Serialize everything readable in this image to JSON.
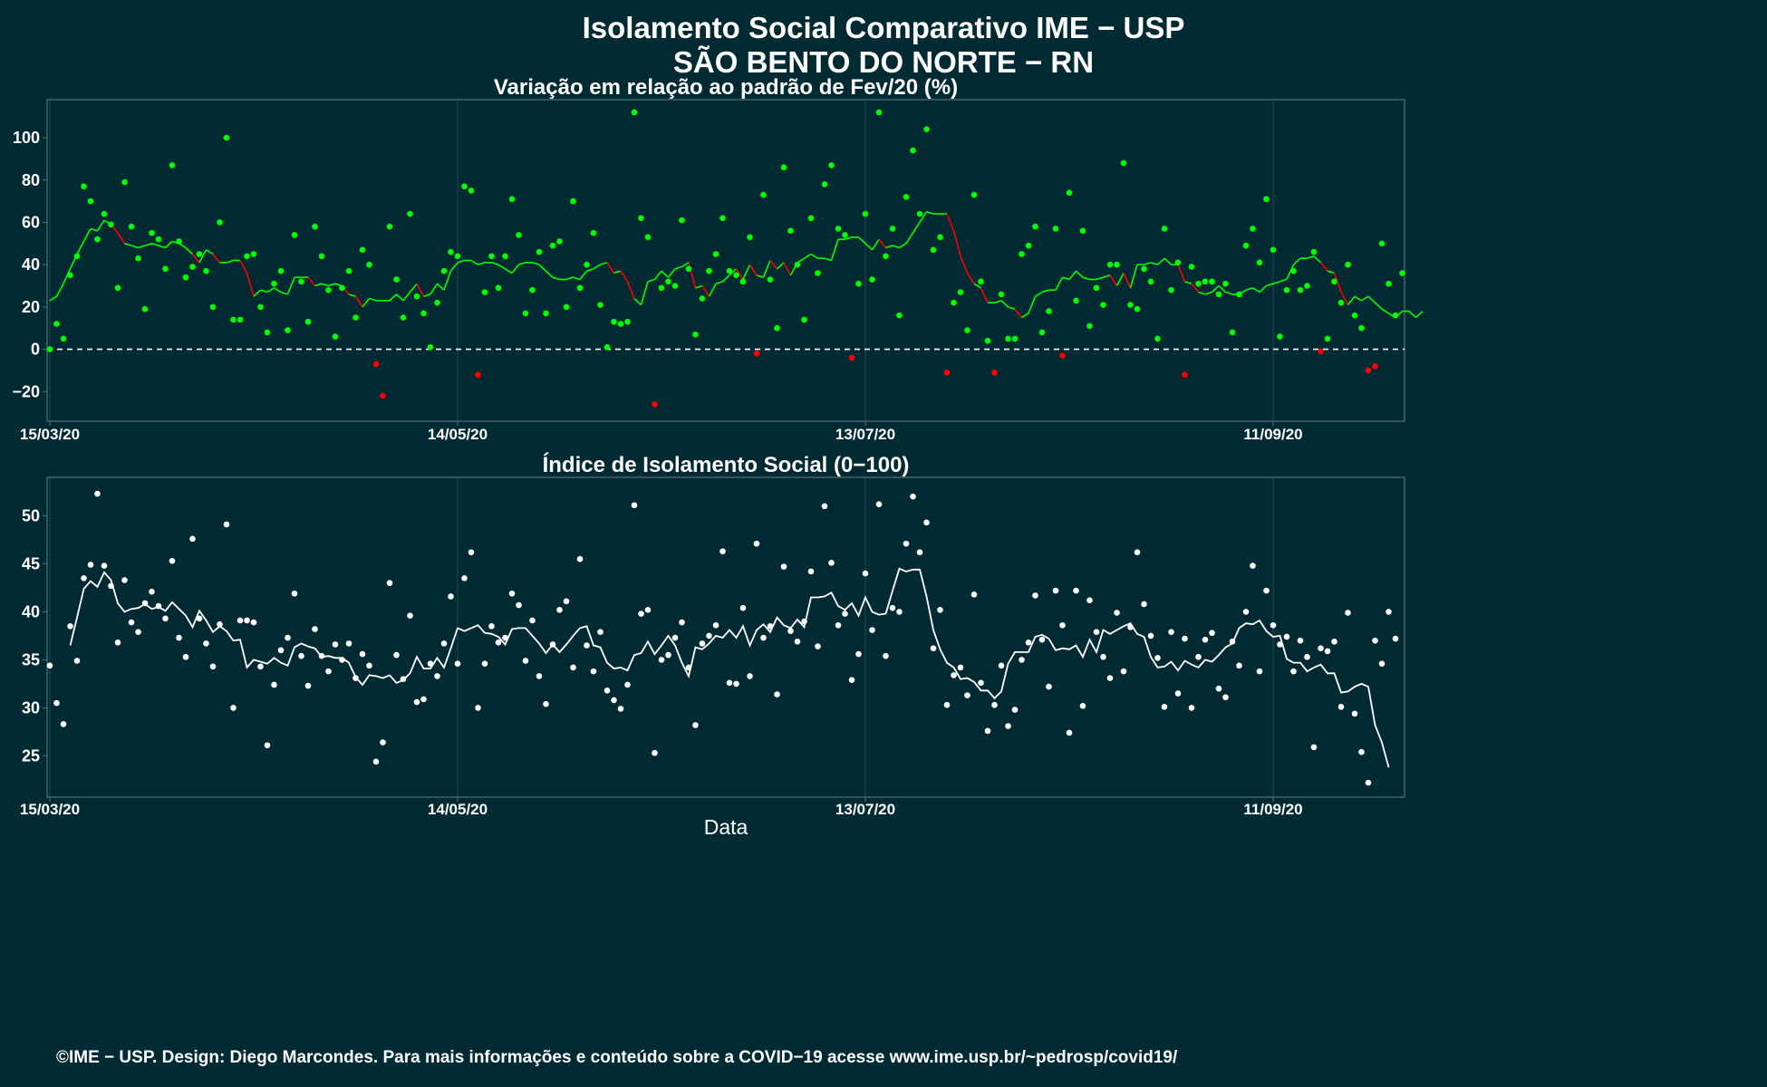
{
  "title_lines": [
    "Isolamento Social Comparativo IME − USP",
    "SÃO BENTO DO NORTE − RN"
  ],
  "credits": "©IME − USP. Design: Diego Marcondes. Para mais informações e conteúdo sobre a COVID−19 acesse www.ime.usp.br/~pedrosp/covid19/",
  "colors": {
    "background": "#022a33",
    "positive": "#00ff00",
    "negative": "#ff0000",
    "index": "#ffffff",
    "panel_border": "#5a7177",
    "grid": "#1c4a52"
  },
  "chart_data": [
    {
      "type": "scatter",
      "title": "Variação em relação ao padrão de Fev/20 (%)",
      "xlabel": "",
      "ylabel": "",
      "x_start": "15/03/20",
      "x_ticks": [
        "15/03/20",
        "14/05/20",
        "13/07/20",
        "11/09/20"
      ],
      "y_ticks": [
        -20,
        0,
        20,
        40,
        60,
        80,
        100
      ],
      "ylim": [
        -34,
        118
      ],
      "reference_line": 0,
      "moving_average": "7-day",
      "color_rule": "green when value >= 0, red when value < 0",
      "values": [
        0,
        12,
        5,
        35,
        44,
        77,
        70,
        52,
        64,
        59,
        29,
        79,
        58,
        43,
        19,
        55,
        52,
        38,
        87,
        51,
        34,
        39,
        45,
        37,
        20,
        60,
        100,
        14,
        14,
        44,
        45,
        20,
        8,
        31,
        37,
        9,
        54,
        32,
        13,
        58,
        44,
        28,
        6,
        29,
        37,
        15,
        47,
        40,
        -7,
        -22,
        58,
        33,
        15,
        64,
        25,
        17,
        1,
        22,
        37,
        46,
        44,
        77,
        75,
        -12,
        27,
        44,
        29,
        44,
        71,
        54,
        17,
        28,
        46,
        17,
        49,
        51,
        20,
        70,
        29,
        40,
        55,
        21,
        1,
        13,
        12,
        13,
        112,
        62,
        53,
        -26,
        29,
        32,
        30,
        61,
        38,
        7,
        24,
        37,
        45,
        62,
        37,
        35,
        32,
        53,
        -2,
        73,
        33,
        10,
        86,
        56,
        40,
        14,
        62,
        36,
        78,
        87,
        57,
        54,
        -4,
        31,
        64,
        33,
        112,
        44,
        57,
        16,
        72,
        94,
        64,
        104,
        47,
        53,
        -11,
        22,
        27,
        9,
        73,
        32,
        4,
        -11,
        26,
        5,
        5,
        45,
        49,
        58,
        8,
        18,
        57,
        -3,
        74,
        23,
        56,
        11,
        29,
        21,
        40,
        40,
        88,
        21,
        19,
        38,
        32,
        5,
        57,
        28,
        41,
        -12,
        39,
        31,
        32,
        32,
        26,
        31,
        8,
        26,
        49,
        57,
        41,
        71,
        47,
        6,
        28,
        37,
        28,
        30,
        46,
        -1,
        5,
        32,
        22,
        40,
        16,
        10,
        -10,
        -8,
        50,
        31,
        16,
        36
      ],
      "moving_average_values": [
        23,
        25,
        31,
        38,
        45,
        51,
        57,
        56,
        61,
        59,
        55,
        50,
        49,
        48,
        49,
        50,
        49,
        48,
        51,
        50,
        48,
        45,
        41,
        47,
        45,
        41,
        41,
        42,
        42,
        36,
        25,
        28,
        27,
        29,
        27,
        26,
        34,
        34,
        34,
        30,
        31,
        30,
        31,
        30,
        26,
        25,
        20,
        24,
        23,
        23,
        23,
        26,
        23,
        27,
        31,
        25,
        26,
        31,
        28,
        37,
        41,
        42,
        42,
        40,
        41,
        41,
        40,
        38,
        36,
        40,
        41,
        41,
        40,
        37,
        34,
        33,
        33,
        34,
        33,
        37,
        38,
        40,
        41,
        36,
        37,
        32,
        24,
        21,
        32,
        33,
        37,
        34,
        38,
        39,
        41,
        29,
        30,
        25,
        31,
        32,
        35,
        38,
        33,
        40,
        35,
        34,
        42,
        38,
        41,
        35,
        41,
        43,
        45,
        43,
        43,
        42,
        52,
        52,
        53,
        53,
        50,
        47,
        52,
        48,
        49,
        48,
        50,
        55,
        60,
        65,
        64,
        64,
        64,
        56,
        44,
        36,
        31,
        29,
        22,
        22,
        23,
        20,
        19,
        15,
        17,
        25,
        27,
        28,
        28,
        34,
        33,
        37,
        34,
        33,
        33,
        34,
        35,
        30,
        36,
        29,
        40,
        40,
        41,
        40,
        43,
        40,
        40,
        32,
        31,
        27,
        26,
        27,
        30,
        27,
        26,
        26,
        28,
        29,
        27,
        30,
        31,
        32,
        33,
        40,
        43,
        43,
        44,
        41,
        37,
        36,
        27,
        21,
        25,
        23,
        25,
        22,
        19,
        17,
        15,
        18,
        18,
        15,
        18
      ]
    },
    {
      "type": "scatter",
      "title": "Índice de Isolamento Social (0−100)",
      "xlabel": "Data",
      "ylabel": "",
      "x_start": "15/03/20",
      "x_ticks": [
        "15/03/20",
        "14/05/20",
        "13/07/20",
        "11/09/20"
      ],
      "y_ticks": [
        25,
        30,
        35,
        40,
        45,
        50
      ],
      "ylim": [
        20.7,
        54.0
      ],
      "moving_average": "7-day",
      "values": [
        34.4,
        30.5,
        28.3,
        38.5,
        34.9,
        43.5,
        44.9,
        52.3,
        44.8,
        42.7,
        36.8,
        43.3,
        38.9,
        37.9,
        40.9,
        42.1,
        40.6,
        39.3,
        45.3,
        37.3,
        35.3,
        47.6,
        39.3,
        36.7,
        34.3,
        38.7,
        49.1,
        30.0,
        39.1,
        39.1,
        38.9,
        34.3,
        26.1,
        32.4,
        36.0,
        37.3,
        41.9,
        35.4,
        32.3,
        38.2,
        35.4,
        33.8,
        36.6,
        35.0,
        36.7,
        33.1,
        35.6,
        34.4,
        24.4,
        26.4,
        43.0,
        35.5,
        33.0,
        39.6,
        30.6,
        30.9,
        34.6,
        33.3,
        36.7,
        41.6,
        34.6,
        43.5,
        46.2,
        30.0,
        34.6,
        38.5,
        36.8,
        37.3,
        41.9,
        40.7,
        34.9,
        39.1,
        33.3,
        30.4,
        36.6,
        40.2,
        41.1,
        34.2,
        45.5,
        36.5,
        33.8,
        37.9,
        31.8,
        30.8,
        29.9,
        32.4,
        51.1,
        39.8,
        40.2,
        25.3,
        35.0,
        35.5,
        37.3,
        38.9,
        34.2,
        28.2,
        36.7,
        37.5,
        38.6,
        46.3,
        32.6,
        32.5,
        40.4,
        33.3,
        47.1,
        37.3,
        38.5,
        31.4,
        44.7,
        38.0,
        36.9,
        39.0,
        44.2,
        36.4,
        51.0,
        45.1,
        38.6,
        39.8,
        32.9,
        35.6,
        44.0,
        38.1,
        51.2,
        35.4,
        40.4,
        40.0,
        47.1,
        52.0,
        46.2,
        49.3,
        36.2,
        40.2,
        30.3,
        33.4,
        34.2,
        31.3,
        41.8,
        32.6,
        27.6,
        30.3,
        34.4,
        28.1,
        29.8,
        35.0,
        36.8,
        41.7,
        37.1,
        32.2,
        42.2,
        38.6,
        27.4,
        42.2,
        30.2,
        41.2,
        37.9,
        35.3,
        33.1,
        39.9,
        33.8,
        38.4,
        46.2,
        40.8,
        37.5,
        35.2,
        30.1,
        37.9,
        31.5,
        37.2,
        30.0,
        35.3,
        37.1,
        37.8,
        32.0,
        31.1,
        36.9,
        34.4,
        40.0,
        44.8,
        33.8,
        42.2,
        38.6,
        36.6,
        37.4,
        33.8,
        37.0,
        35.3,
        25.9,
        36.2,
        35.9,
        36.9,
        30.1,
        39.9,
        29.4,
        25.4,
        22.2,
        37.0,
        34.6,
        40.0,
        37.2
      ],
      "moving_average_values": [
        null,
        null,
        null,
        36.5,
        39.4,
        42.4,
        43.2,
        42.6,
        44.1,
        43.3,
        40.9,
        40.0,
        40.3,
        40.4,
        40.8,
        40.3,
        40.5,
        40.1,
        41.0,
        40.3,
        39.6,
        38.4,
        40.1,
        39.1,
        37.9,
        38.5,
        38.0,
        37.0,
        37.1,
        34.2,
        35.0,
        34.8,
        34.6,
        35.2,
        34.7,
        34.4,
        36.3,
        36.7,
        36.4,
        36.2,
        35.3,
        35.4,
        35.2,
        35.2,
        34.7,
        33.2,
        32.4,
        33.4,
        33.3,
        33.1,
        33.4,
        32.6,
        32.9,
        33.6,
        35.3,
        34.1,
        34.1,
        35.2,
        34.2,
        36.2,
        38.3,
        38.0,
        38.3,
        38.6,
        37.8,
        37.7,
        37.4,
        36.6,
        38.2,
        38.3,
        38.3,
        37.5,
        36.7,
        35.7,
        36.6,
        35.8,
        36.6,
        37.5,
        38.3,
        38.5,
        36.5,
        36.3,
        34.7,
        34.1,
        34.2,
        33.9,
        35.5,
        35.7,
        36.9,
        35.6,
        36.5,
        37.5,
        36.5,
        34.7,
        33.3,
        36.3,
        36.1,
        36.7,
        37.5,
        37.3,
        38.1,
        37.3,
        38.5,
        36.5,
        38.1,
        38.7,
        37.9,
        39.4,
        38.6,
        38.3,
        39.2,
        38.4,
        41.5,
        41.5,
        41.6,
        42.0,
        40.6,
        40.2,
        40.9,
        39.6,
        41.5,
        40.0,
        39.7,
        39.8,
        42.2,
        44.5,
        44.2,
        44.4,
        44.4,
        41.6,
        38.1,
        36.1,
        34.7,
        34.2,
        33.0,
        33.1,
        32.7,
        31.8,
        31.8,
        31.0,
        31.7,
        34.6,
        35.8,
        35.8,
        35.8,
        37.4,
        37.6,
        37.2,
        36.0,
        36.2,
        36.1,
        36.5,
        35.3,
        37.1,
        35.8,
        38.1,
        37.7,
        38.1,
        38.5,
        38.8,
        37.7,
        37.4,
        35.3,
        34.2,
        34.3,
        34.8,
        33.9,
        34.9,
        34.5,
        34.2,
        35.0,
        34.8,
        35.5,
        36.3,
        36.7,
        38.3,
        38.8,
        38.7,
        39.1,
        38.0,
        37.4,
        37.5,
        35.1,
        34.7,
        34.7,
        33.8,
        34.2,
        34.5,
        33.6,
        33.6,
        31.6,
        31.7,
        32.2,
        32.5,
        32.2,
        28.2,
        26.4,
        23.8
      ]
    }
  ]
}
